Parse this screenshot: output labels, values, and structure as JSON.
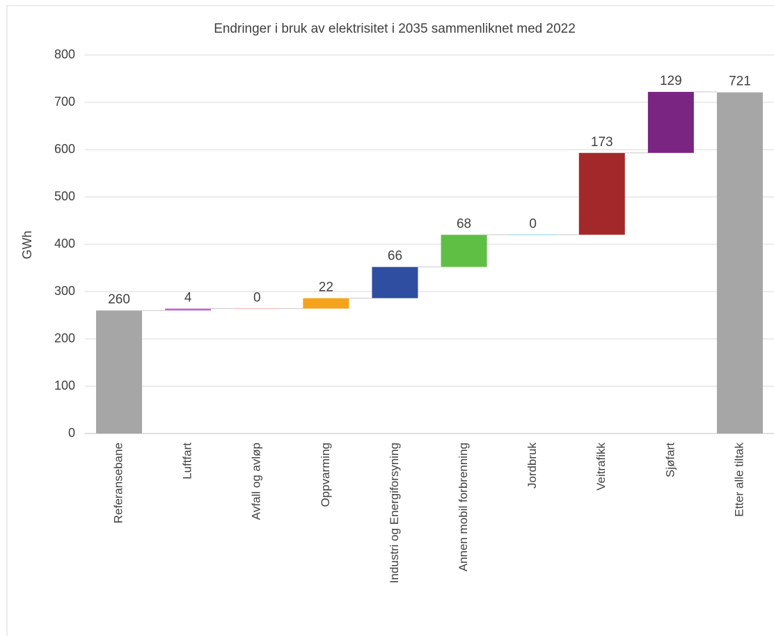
{
  "chart_data": {
    "type": "waterfall",
    "title": "Endringer i bruk av elektrisitet i 2035 sammenliknet med 2022",
    "y_label": "GWh",
    "categories": [
      "Referansebane",
      "Luftfart",
      "Avfall og avløp",
      "Oppvarming",
      "Industri og Energiforsyning",
      "Annen mobil forbrenning",
      "Jordbruk",
      "Veitrafikk",
      "Sjøfart",
      "Etter alle tiltak"
    ],
    "values": [
      260,
      4,
      0,
      22,
      66,
      68,
      0,
      173,
      129,
      721
    ],
    "measure": [
      "absolute",
      "relative",
      "relative",
      "relative",
      "relative",
      "relative",
      "relative",
      "relative",
      "relative",
      "total"
    ],
    "colors": [
      "#a6a6a6",
      "#c264c6",
      "#f4c4c4",
      "#f5a21c",
      "#2f4ea1",
      "#5fbf45",
      "#a8e0f0",
      "#a3282a",
      "#7a2582",
      "#a6a6a6"
    ],
    "ylim": [
      0,
      800
    ],
    "yticks": [
      0,
      100,
      200,
      300,
      400,
      500,
      600,
      700,
      800
    ],
    "grid": true
  }
}
